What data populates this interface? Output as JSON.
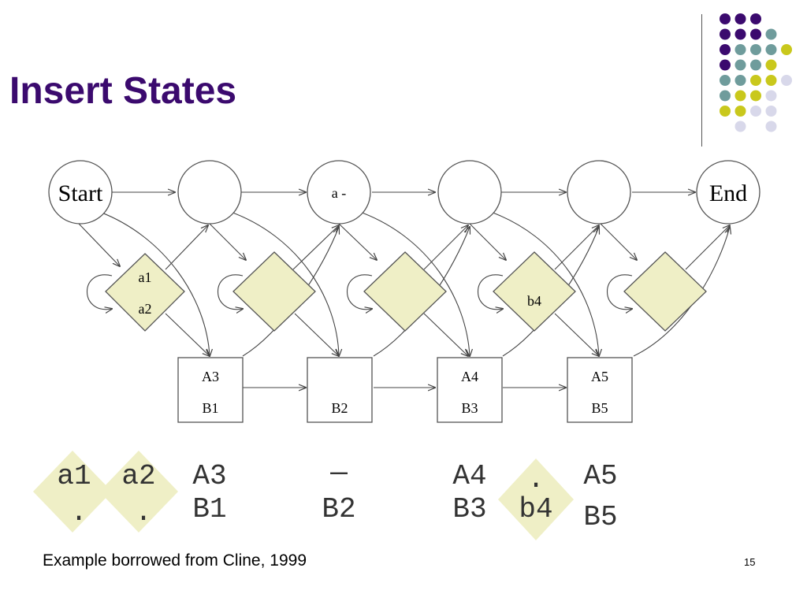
{
  "slide": {
    "title": "Insert States",
    "caption": "Example borrowed from Cline, 1999",
    "page_number": "15"
  },
  "colors": {
    "title": "#3b0a6e",
    "dot_purple": "#3b0a6e",
    "dot_teal": "#6f9c9c",
    "dot_yellow": "#c9c81c",
    "dot_lavender": "#d8d8ea",
    "insert_fill": "#efefc6",
    "insert_stroke": "#555555"
  },
  "decoration": {
    "dot_grid": [
      [
        "purple",
        "purple",
        "purple",
        "",
        "",
        ""
      ],
      [
        "purple",
        "purple",
        "purple",
        "teal",
        "",
        ""
      ],
      [
        "purple",
        "teal",
        "teal",
        "teal",
        "yellow",
        ""
      ],
      [
        "purple",
        "teal",
        "teal",
        "yellow",
        "",
        ""
      ],
      [
        "teal",
        "teal",
        "yellow",
        "yellow",
        "lavender",
        ""
      ],
      [
        "teal",
        "yellow",
        "yellow",
        "lavender",
        "",
        ""
      ],
      [
        "yellow",
        "yellow",
        "lavender",
        "lavender",
        "",
        ""
      ],
      [
        "",
        "lavender",
        "",
        "lavender",
        "",
        ""
      ]
    ]
  },
  "diagram": {
    "match_states": [
      {
        "id": "start",
        "label": "Start"
      },
      {
        "id": "m1",
        "label": ""
      },
      {
        "id": "m2",
        "label": "a -"
      },
      {
        "id": "m3",
        "label": ""
      },
      {
        "id": "m4",
        "label": ""
      },
      {
        "id": "end",
        "label": "End"
      }
    ],
    "insert_states": [
      {
        "id": "i0",
        "lines": [
          "a1",
          "a2"
        ]
      },
      {
        "id": "i1",
        "lines": []
      },
      {
        "id": "i2",
        "lines": []
      },
      {
        "id": "i3",
        "lines": [
          "b4"
        ]
      },
      {
        "id": "i4",
        "lines": []
      }
    ],
    "delete_states": [
      {
        "id": "d1",
        "lines": [
          "A3",
          "B1"
        ]
      },
      {
        "id": "d2",
        "lines": [
          "",
          "B2"
        ]
      },
      {
        "id": "d3",
        "lines": [
          "A4",
          "B3"
        ]
      },
      {
        "id": "d4",
        "lines": [
          "A5",
          "B5"
        ]
      }
    ]
  },
  "alignment": {
    "insert_col_1": {
      "top": "a1",
      "bottom": "."
    },
    "insert_col_2": {
      "top": "a2",
      "bottom": "."
    },
    "col_3": {
      "top": "A3",
      "bottom": "B1"
    },
    "col_4": {
      "top": "—",
      "bottom": "B2"
    },
    "col_5": {
      "top": "A4",
      "bottom": "B3"
    },
    "insert_col_6": {
      "top": ".",
      "bottom": "b4"
    },
    "col_7": {
      "top": "A5",
      "bottom": "B5"
    }
  }
}
